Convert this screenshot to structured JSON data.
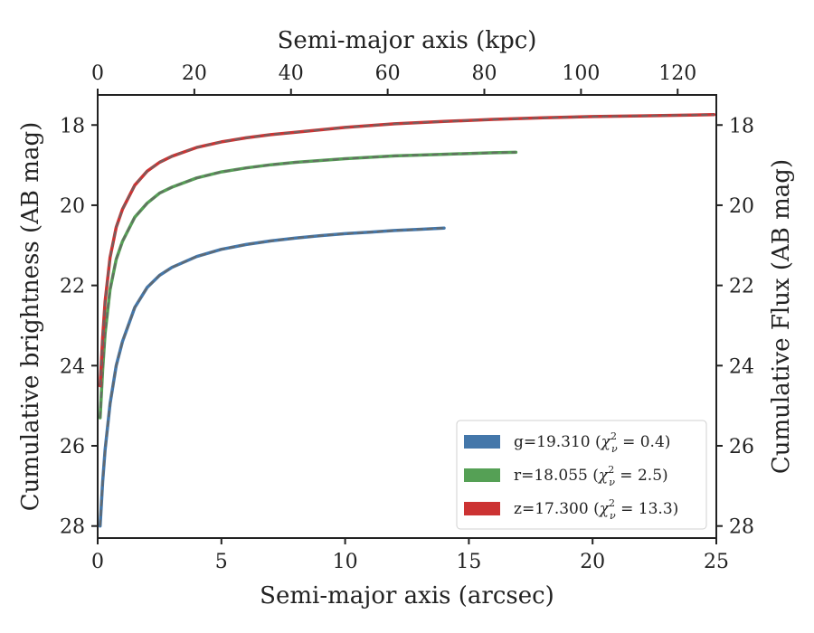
{
  "chart_data": {
    "type": "line",
    "xlabel": "Semi-major axis (arcsec)",
    "x2label": "Semi-major axis (kpc)",
    "ylabel": "Cumulative brightness (AB mag)",
    "y2label": "Cumulative Flux (AB mag)",
    "xlim": [
      0,
      25
    ],
    "x2lim": [
      0,
      128
    ],
    "ylim": [
      28.3,
      17.25
    ],
    "y_inverted": true,
    "xticks": [
      0,
      5,
      10,
      15,
      20,
      25
    ],
    "x2ticks": [
      0,
      20,
      40,
      60,
      80,
      100,
      120
    ],
    "yticks": [
      18,
      20,
      22,
      24,
      26,
      28
    ],
    "grid": false,
    "legend_position": "lower-right",
    "model_line_style": "dashed grey",
    "series": [
      {
        "name": "g=19.310",
        "chi2": "0.4",
        "color": "#4477aa",
        "x": [
          0.1,
          0.2,
          0.3,
          0.5,
          0.75,
          1,
          1.5,
          2,
          2.5,
          3,
          4,
          5,
          6,
          7,
          8,
          9,
          10,
          11,
          12,
          13,
          14
        ],
        "y": [
          28.0,
          26.9,
          26.1,
          24.95,
          24.0,
          23.4,
          22.55,
          22.05,
          21.75,
          21.55,
          21.28,
          21.1,
          20.98,
          20.89,
          20.82,
          20.76,
          20.71,
          20.67,
          20.63,
          20.6,
          20.57
        ]
      },
      {
        "name": "r=18.055",
        "chi2": "2.5",
        "color": "#55a055",
        "x": [
          0.1,
          0.2,
          0.3,
          0.5,
          0.75,
          1,
          1.5,
          2,
          2.5,
          3,
          4,
          5,
          6,
          7,
          8,
          10,
          12,
          14,
          16,
          16.9
        ],
        "y": [
          25.3,
          24.1,
          23.2,
          22.1,
          21.35,
          20.9,
          20.3,
          19.95,
          19.7,
          19.55,
          19.32,
          19.17,
          19.07,
          18.99,
          18.93,
          18.84,
          18.77,
          18.73,
          18.69,
          18.68
        ]
      },
      {
        "name": "z=17.300",
        "chi2": "13.3",
        "color": "#cc3333",
        "x": [
          0.1,
          0.2,
          0.3,
          0.5,
          0.75,
          1,
          1.5,
          2,
          2.5,
          3,
          4,
          5,
          6,
          7,
          8,
          10,
          12,
          14,
          16,
          18,
          20,
          22,
          24,
          24.9
        ],
        "y": [
          24.5,
          23.3,
          22.4,
          21.3,
          20.55,
          20.1,
          19.5,
          19.15,
          18.93,
          18.78,
          18.56,
          18.42,
          18.32,
          18.24,
          18.18,
          18.06,
          17.97,
          17.91,
          17.86,
          17.82,
          17.79,
          17.77,
          17.75,
          17.74
        ]
      }
    ]
  }
}
